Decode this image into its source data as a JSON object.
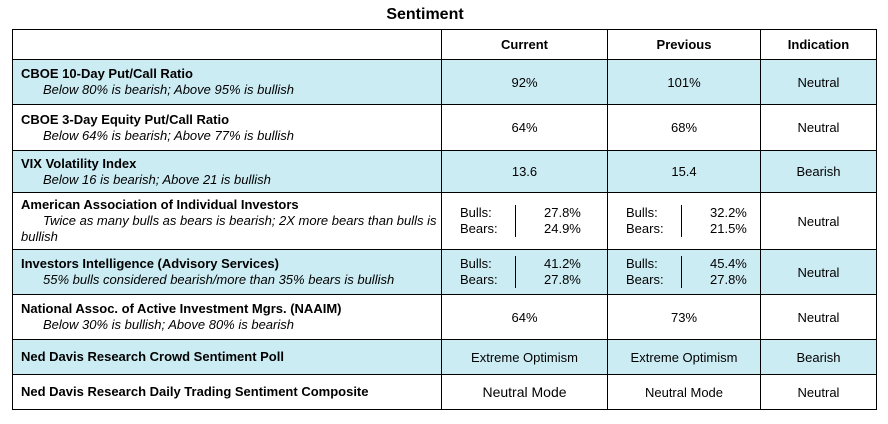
{
  "title": "Sentiment",
  "headers": {
    "indicator": "",
    "current": "Current",
    "previous": "Previous",
    "indication": "Indication"
  },
  "rows": [
    {
      "name": "CBOE 10-Day Put/Call Ratio",
      "desc": "Below 80% is bearish; Above 95% is bullish",
      "current": "92%",
      "previous": "101%",
      "indication": "Neutral"
    },
    {
      "name": "CBOE 3-Day Equity Put/Call Ratio",
      "desc": "Below 64% is bearish; Above 77% is bullish",
      "current": "64%",
      "previous": "68%",
      "indication": "Neutral"
    },
    {
      "name": "VIX Volatility Index",
      "desc": "Below 16 is bearish; Above 21 is bullish",
      "current": "13.6",
      "previous": "15.4",
      "indication": "Bearish"
    },
    {
      "name": "American Association of Individual Investors",
      "desc": "Twice as many bulls as bears is bearish; 2X more bears than bulls is bullish",
      "current": {
        "bulls_label": "Bulls:",
        "bears_label": "Bears:",
        "bulls": "27.8%",
        "bears": "24.9%"
      },
      "previous": {
        "bulls_label": "Bulls:",
        "bears_label": "Bears:",
        "bulls": "32.2%",
        "bears": "21.5%"
      },
      "indication": "Neutral"
    },
    {
      "name": "Investors Intelligence (Advisory Services)",
      "desc": "55% bulls considered bearish/more than 35% bears is bullish",
      "current": {
        "bulls_label": "Bulls:",
        "bears_label": "Bears:",
        "bulls": "41.2%",
        "bears": "27.8%"
      },
      "previous": {
        "bulls_label": "Bulls:",
        "bears_label": "Bears:",
        "bulls": "45.4%",
        "bears": "27.8%"
      },
      "indication": "Neutral"
    },
    {
      "name": "National Assoc. of Active Investment Mgrs. (NAAIM)",
      "desc": "Below 30% is bullish; Above 80% is bearish",
      "current": "64%",
      "previous": "73%",
      "indication": "Neutral"
    },
    {
      "name": "Ned Davis Research Crowd Sentiment Poll",
      "current": "Extreme  Optimism",
      "previous": "Extreme Optimism",
      "indication": "Bearish"
    },
    {
      "name": "Ned Davis Research Daily Trading Sentiment Composite",
      "current": "Neutral Mode",
      "previous": "Neutral Mode",
      "indication": "Neutral"
    }
  ],
  "colors": {
    "highlight": "#ccecf4",
    "plain": "#ffffff",
    "border": "#000000"
  }
}
